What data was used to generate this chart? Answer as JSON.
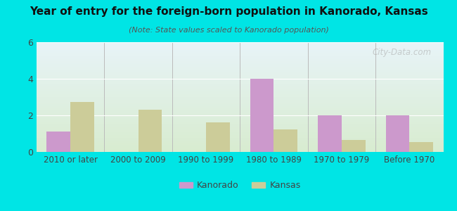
{
  "title": "Year of entry for the foreign-born population in Kanorado, Kansas",
  "subtitle": "(Note: State values scaled to Kanorado population)",
  "categories": [
    "2010 or later",
    "2000 to 2009",
    "1990 to 1999",
    "1980 to 1989",
    "1970 to 1979",
    "Before 1970"
  ],
  "kanorado_values": [
    1.1,
    0,
    0,
    4.0,
    2.0,
    2.0
  ],
  "kansas_values": [
    2.75,
    2.3,
    1.6,
    1.25,
    0.65,
    0.55
  ],
  "kanorado_color": "#cc99cc",
  "kansas_color": "#cccc99",
  "background_outer": "#00e5e5",
  "background_inner_top": "#e8f4f8",
  "background_inner_bottom": "#d8ecd0",
  "ylim": [
    0,
    6
  ],
  "yticks": [
    0,
    2,
    4,
    6
  ],
  "bar_width": 0.35,
  "legend_labels": [
    "Kanorado",
    "Kansas"
  ],
  "watermark": "City-Data.com"
}
